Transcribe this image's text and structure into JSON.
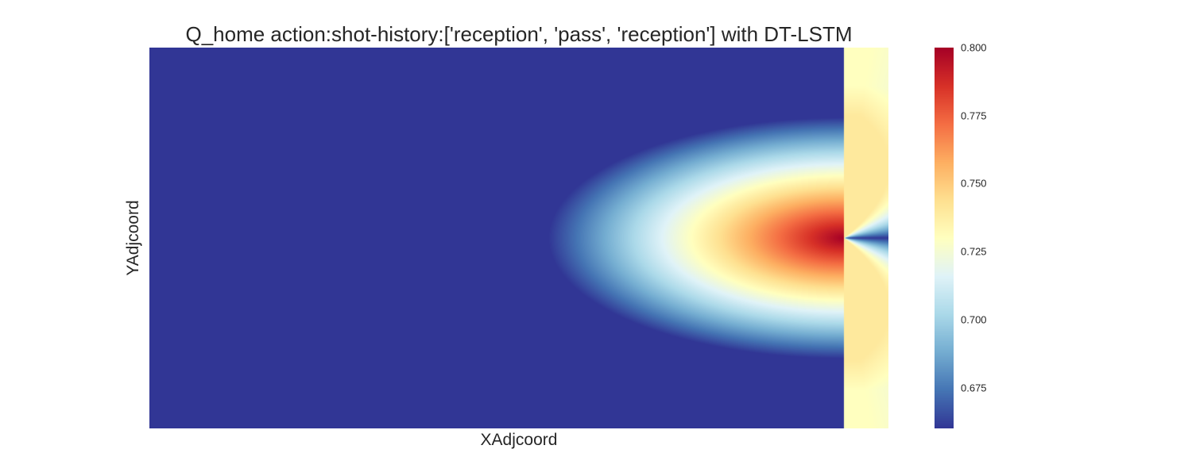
{
  "chart_data": {
    "type": "heatmap",
    "title": "Q_home action:shot-history:['reception', 'pass', 'reception'] with DT-LSTM",
    "xlabel": "XAdjcoord",
    "ylabel": "YAdjcoord",
    "xlim": [
      0,
      100
    ],
    "ylim": [
      0,
      100
    ],
    "colormap": "RdYlBu_r",
    "colorbar": {
      "vmin": 0.66,
      "vmax": 0.8,
      "ticks": [
        "0.675",
        "0.700",
        "0.725",
        "0.750",
        "0.775",
        "0.800"
      ]
    },
    "field_model": {
      "peak_value": 0.8,
      "peak_x": 94,
      "peak_y": 50,
      "cold_edge_x": 48,
      "min_value": 0.66
    },
    "colors": [
      "#313695",
      "#4575b4",
      "#74add1",
      "#abd9e9",
      "#e0f3f8",
      "#ffffbf",
      "#fee090",
      "#fdae61",
      "#f46d43",
      "#d73027",
      "#a50026"
    ]
  }
}
